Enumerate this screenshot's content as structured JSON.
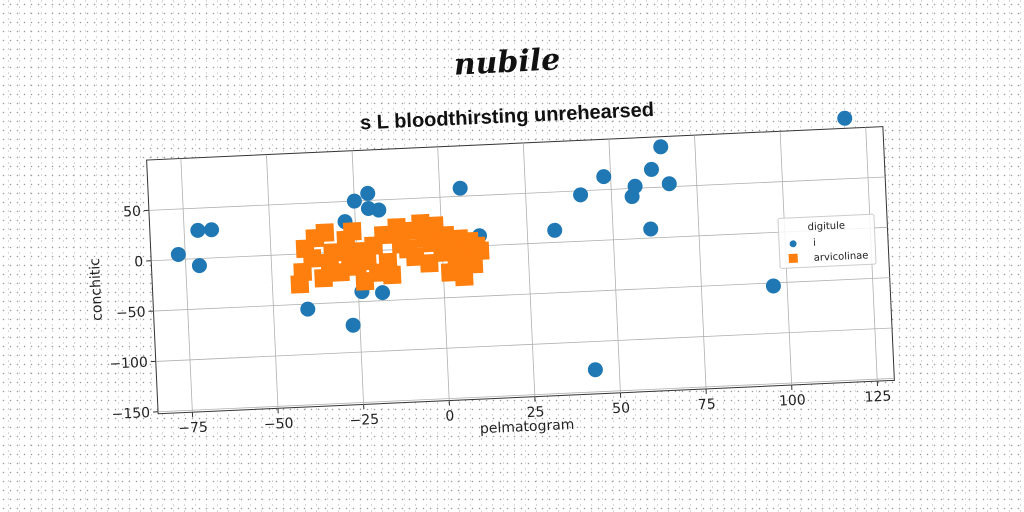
{
  "watermark": "nubile",
  "chart_data": {
    "type": "scatter",
    "title": "s L bloodthirsting unrehearsed",
    "xlabel": "pelmatogram",
    "ylabel": "conchitic",
    "xlim": [
      -85,
      130
    ],
    "ylim": [
      -152,
      100
    ],
    "xticks": [
      -75,
      -50,
      -25,
      0,
      25,
      50,
      75,
      100,
      125
    ],
    "yticks": [
      50,
      0,
      -50,
      -100,
      -150
    ],
    "grid": true,
    "legend": {
      "title": "digitule",
      "position": "right"
    },
    "series": [
      {
        "name": "i",
        "marker": "circle",
        "color": "#1f77b4",
        "points": [
          [
            -77,
            5
          ],
          [
            -71,
            28
          ],
          [
            -67,
            28
          ],
          [
            -71,
            -7
          ],
          [
            -40,
            -55
          ],
          [
            -28,
            30
          ],
          [
            -25,
            50
          ],
          [
            -21,
            57
          ],
          [
            -21,
            42
          ],
          [
            -18,
            40
          ],
          [
            -24,
            -40
          ],
          [
            -18,
            -42
          ],
          [
            -27,
            -73
          ],
          [
            6,
            58
          ],
          [
            11,
            10
          ],
          [
            33,
            12
          ],
          [
            41,
            46
          ],
          [
            48,
            63
          ],
          [
            57,
            52
          ],
          [
            56,
            42
          ],
          [
            61,
            9
          ],
          [
            62,
            68
          ],
          [
            65,
            90
          ],
          [
            67,
            53
          ],
          [
            96,
            -53
          ],
          [
            119,
            110
          ],
          [
            43,
            -128
          ]
        ]
      },
      {
        "name": "arvicolinae",
        "marker": "square",
        "color": "#ff7f0e",
        "points": [
          [
            -42,
            -30
          ],
          [
            -41,
            -18
          ],
          [
            -40,
            5
          ],
          [
            -38,
            -5
          ],
          [
            -37,
            15
          ],
          [
            -35,
            -25
          ],
          [
            -34,
            20
          ],
          [
            -33,
            -10
          ],
          [
            -32,
            0
          ],
          [
            -30,
            -20
          ],
          [
            -28,
            12
          ],
          [
            -27,
            -5
          ],
          [
            -26,
            20
          ],
          [
            -25,
            -15
          ],
          [
            -24,
            0
          ],
          [
            -23,
            -30
          ],
          [
            -22,
            -10
          ],
          [
            -20,
            5
          ],
          [
            -19,
            -22
          ],
          [
            -17,
            15
          ],
          [
            -16,
            -12
          ],
          [
            -15,
            -25
          ],
          [
            -13,
            22
          ],
          [
            -12,
            5
          ],
          [
            -10,
            0
          ],
          [
            -9,
            18
          ],
          [
            -8,
            -8
          ],
          [
            -6,
            25
          ],
          [
            -5,
            10
          ],
          [
            -4,
            -15
          ],
          [
            -3,
            5
          ],
          [
            -2,
            22
          ],
          [
            0,
            -5
          ],
          [
            1,
            12
          ],
          [
            2,
            -25
          ],
          [
            3,
            0
          ],
          [
            4,
            -15
          ],
          [
            5,
            8
          ],
          [
            6,
            -30
          ],
          [
            7,
            -5
          ],
          [
            8,
            5
          ],
          [
            9,
            -18
          ],
          [
            10,
            0
          ],
          [
            11,
            -5
          ]
        ]
      }
    ]
  }
}
